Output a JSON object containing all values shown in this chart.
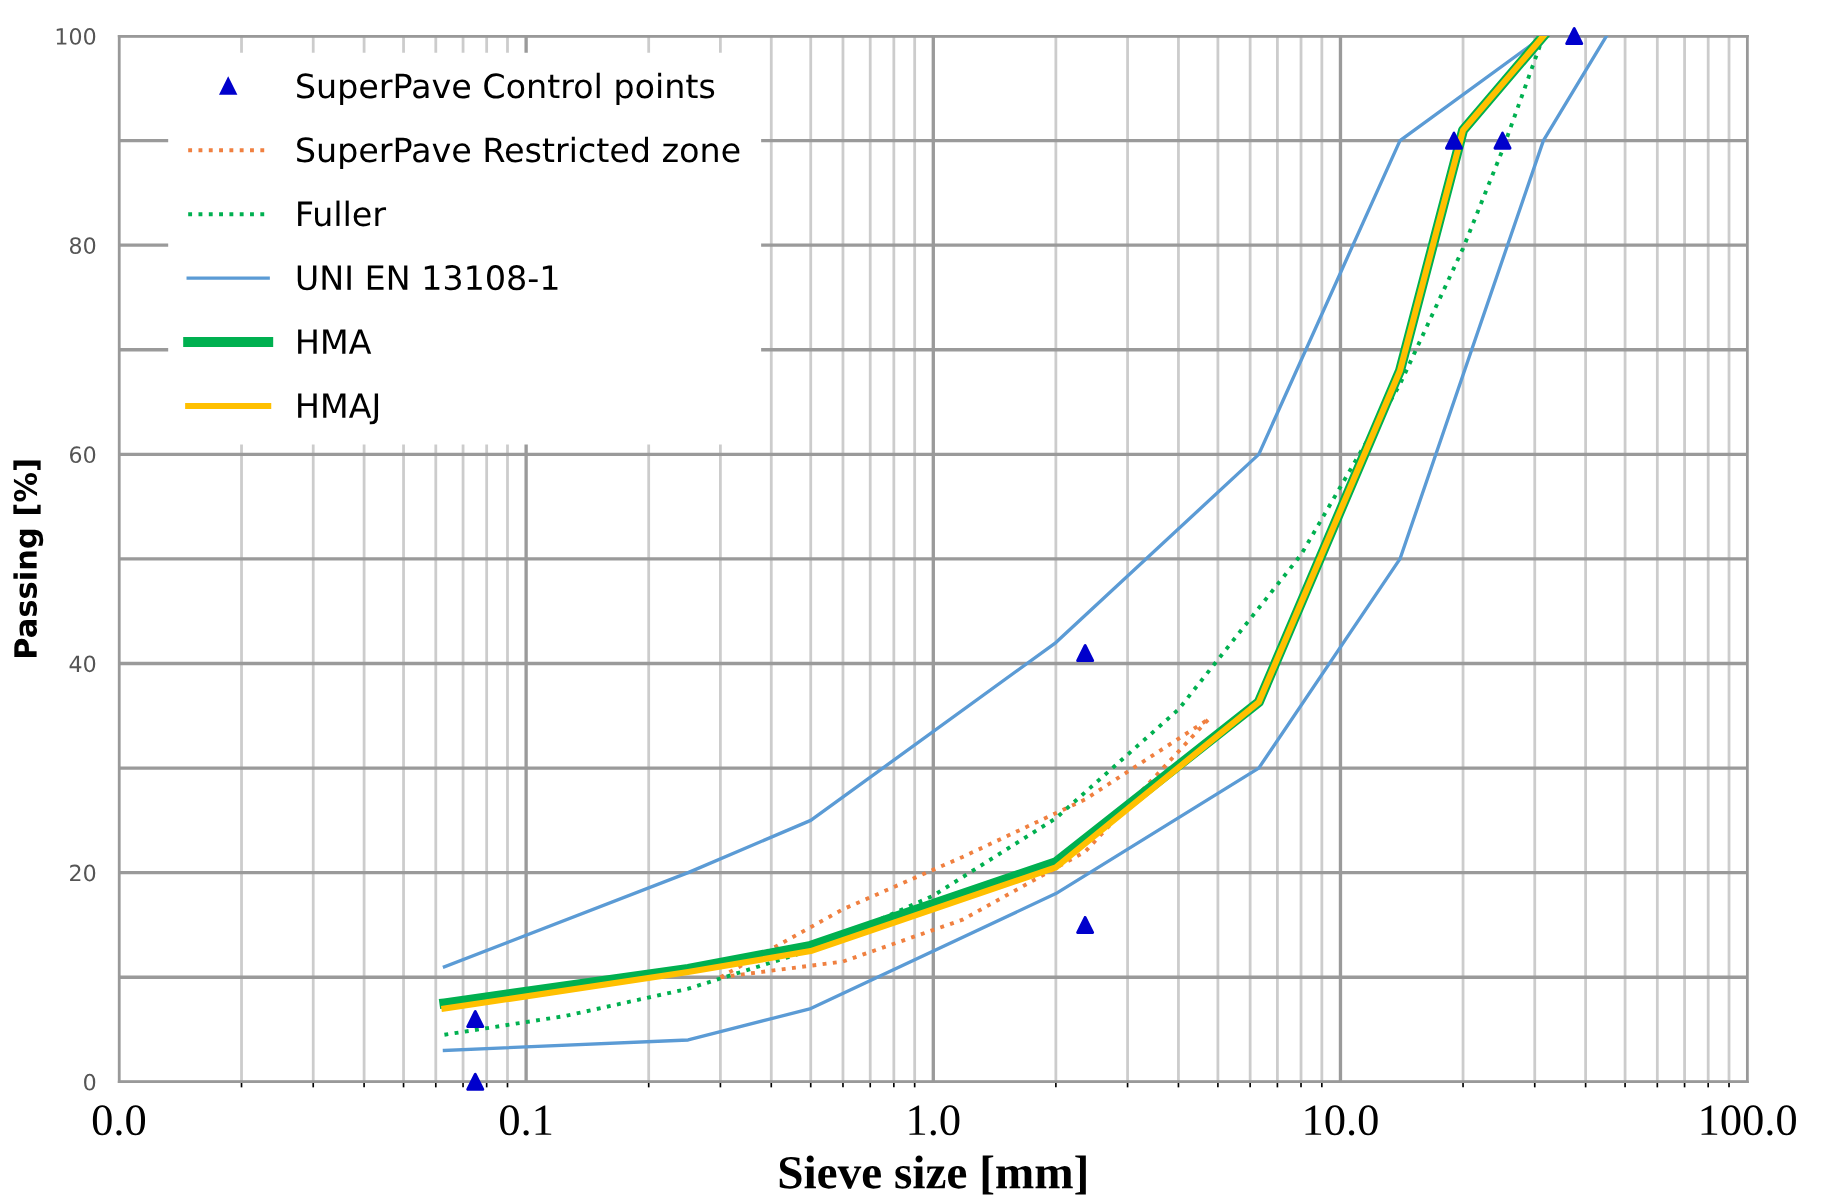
{
  "chart_data": {
    "type": "line",
    "xlabel": "Sieve size [mm]",
    "ylabel": "Passing [%]",
    "log": "x",
    "xlim": [
      0.01,
      100
    ],
    "xticks": [
      {
        "value": 0.01,
        "label": "0.0"
      },
      {
        "value": 0.1,
        "label": "0.1"
      },
      {
        "value": 1,
        "label": "1.0"
      },
      {
        "value": 10,
        "label": "10.0"
      },
      {
        "value": 100,
        "label": "100.0"
      }
    ],
    "ylim": [
      0,
      100
    ],
    "yticks": [
      0,
      {
        "value": 10,
        "label": null
      },
      20,
      {
        "value": 30,
        "label": null
      },
      40,
      {
        "value": 50,
        "label": null
      },
      60,
      {
        "value": 70,
        "label": null
      },
      80,
      {
        "value": 90,
        "label": null
      },
      100
    ],
    "grid": true,
    "legend": "top left",
    "series": [
      {
        "name": "SuperPave Control points",
        "type": "scatter",
        "marker": "triangle",
        "color": "#0000cc",
        "x": [
          0.075,
          0.075,
          2.36,
          2.36,
          19,
          25,
          37.5
        ],
        "values": [
          0,
          6,
          15,
          41,
          90,
          90,
          100
        ]
      },
      {
        "name": "SuperPave Restricted zone",
        "line_style": "dotted",
        "color": "#f08040",
        "x": [
          0.3,
          0.6,
          1.18,
          2.36,
          4.75
        ],
        "values": [
          10,
          16.5,
          21.5,
          27,
          34.7
        ]
      },
      {
        "line_style": "dotted",
        "color": "#f08040",
        "x": [
          0.3,
          0.6,
          1.18,
          2.36,
          4.75
        ],
        "values": [
          10,
          11.5,
          15.5,
          22,
          34.7
        ]
      },
      {
        "name": "Fuller",
        "line_style": "dotted",
        "color": "#00b050",
        "x": [
          0.063,
          0.125,
          0.25,
          0.5,
          1,
          2,
          4,
          8,
          14,
          20,
          25,
          31.5
        ],
        "values": [
          4.5,
          6.3,
          8.9,
          12.6,
          17.8,
          25.2,
          35.6,
          50.4,
          66.7,
          79.7,
          89.1,
          100
        ]
      },
      {
        "name": "UNI EN 13108-1",
        "line_style": "solid",
        "color": "#5b9bd5",
        "x": [
          0.063,
          0.25,
          0.5,
          2,
          6.3,
          14,
          31.5
        ],
        "values": [
          11,
          20,
          25,
          42,
          60,
          90,
          100
        ]
      },
      {
        "line_style": "solid",
        "color": "#5b9bd5",
        "x": [
          0.063,
          0.25,
          0.5,
          2,
          6.3,
          14,
          31.5,
          45
        ],
        "values": [
          3,
          4,
          7,
          18,
          30,
          50,
          90,
          100
        ]
      },
      {
        "name": "HMA",
        "line_style": "solid",
        "color": "#00b050",
        "x": [
          0.063,
          0.25,
          0.5,
          2,
          6.3,
          14,
          20,
          31.5
        ],
        "values": [
          7.5,
          10.8,
          13,
          21,
          36.3,
          68,
          91,
          100
        ]
      },
      {
        "name": "HMAJ",
        "line_style": "solid",
        "color": "#ffc000",
        "x": [
          0.063,
          0.25,
          0.5,
          2,
          6.3,
          14,
          20,
          31.5
        ],
        "values": [
          7,
          10.5,
          12.5,
          20.5,
          36.3,
          68,
          91,
          100
        ]
      }
    ]
  }
}
